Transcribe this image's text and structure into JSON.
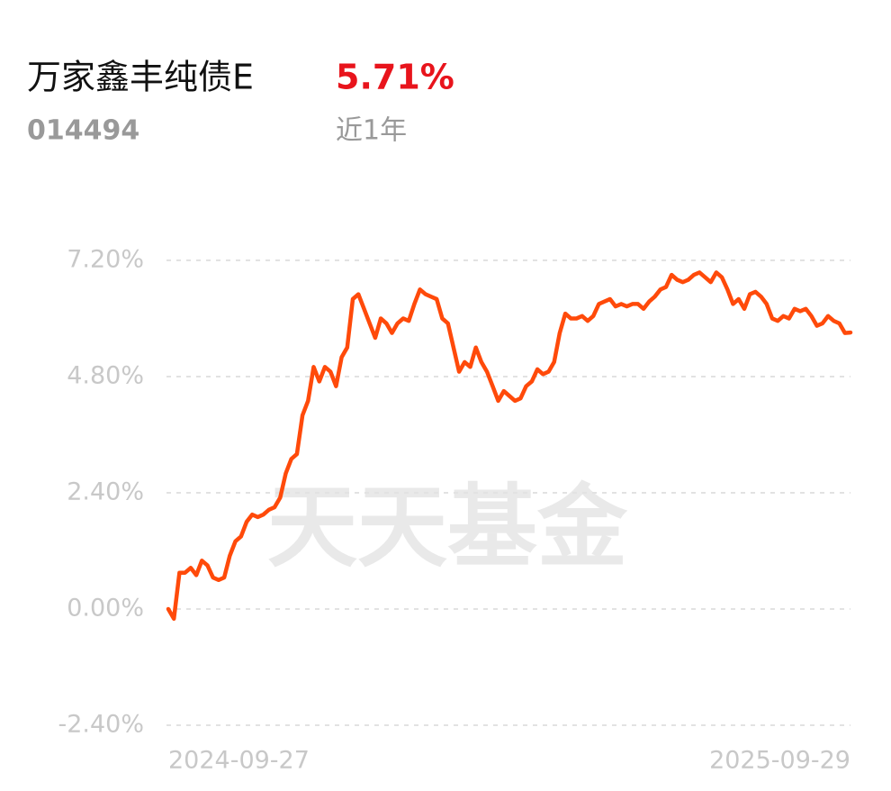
{
  "header": {
    "name": "万家鑫丰纯债E",
    "return": "5.71%",
    "code": "014494",
    "period": "近1年"
  },
  "watermark": "天天基金",
  "chart_data": {
    "type": "line",
    "categories": [
      "2024-09-27",
      null,
      null,
      null,
      null,
      null,
      null,
      null,
      null,
      null,
      null,
      null,
      null,
      null,
      null,
      null,
      null,
      null,
      null,
      null,
      null,
      null,
      null,
      null,
      null,
      null,
      null,
      null,
      null,
      null,
      null,
      null,
      null,
      null,
      null,
      null,
      null,
      null,
      null,
      null,
      null,
      null,
      null,
      null,
      null,
      null,
      null,
      null,
      null,
      null,
      null,
      null,
      null,
      null,
      null,
      null,
      null,
      null,
      null,
      null,
      null,
      null,
      null,
      null,
      null,
      null,
      null,
      null,
      null,
      null,
      null,
      null,
      null,
      null,
      null,
      null,
      null,
      null,
      null,
      null,
      null,
      null,
      null,
      null,
      null,
      null,
      null,
      null,
      null,
      null,
      null,
      null,
      null,
      null,
      null,
      null,
      null,
      null,
      null,
      null,
      null,
      null,
      null,
      null,
      null,
      null,
      null,
      null,
      null,
      null,
      null,
      null,
      null,
      null,
      null,
      null,
      null,
      null,
      null,
      null,
      null,
      null,
      "2025-09-29"
    ],
    "series": [
      {
        "color": "#ff4a0a",
        "values": [
          0,
          -0.2,
          0.75,
          0.75,
          0.85,
          0.7,
          1.0,
          0.9,
          0.65,
          0.6,
          0.65,
          1.1,
          1.4,
          1.5,
          1.8,
          1.95,
          1.9,
          1.95,
          2.05,
          2.1,
          2.3,
          2.8,
          3.1,
          3.2,
          4.0,
          4.3,
          5.0,
          4.7,
          5.0,
          4.9,
          4.6,
          5.2,
          5.4,
          6.4,
          6.5,
          6.2,
          5.9,
          5.6,
          6.0,
          5.9,
          5.7,
          5.9,
          6.0,
          5.95,
          6.3,
          6.6,
          6.5,
          6.45,
          6.4,
          6.0,
          5.9,
          5.4,
          4.9,
          5.1,
          5.0,
          5.4,
          5.1,
          4.9,
          4.6,
          4.3,
          4.5,
          4.4,
          4.3,
          4.35,
          4.6,
          4.7,
          4.95,
          4.85,
          4.9,
          5.1,
          5.7,
          6.1,
          6.0,
          6.0,
          6.05,
          5.95,
          6.05,
          6.3,
          6.35,
          6.4,
          6.25,
          6.3,
          6.25,
          6.3,
          6.3,
          6.2,
          6.35,
          6.45,
          6.6,
          6.65,
          6.9,
          6.8,
          6.75,
          6.8,
          6.9,
          6.95,
          6.85,
          6.75,
          6.95,
          6.85,
          6.6,
          6.3,
          6.4,
          6.2,
          6.5,
          6.55,
          6.45,
          6.3,
          6.0,
          5.95,
          6.05,
          6.0,
          6.2,
          6.15,
          6.2,
          6.05,
          5.85,
          5.9,
          6.05,
          5.95,
          5.9,
          5.7,
          5.71
        ]
      }
    ],
    "ylim": [
      -2.4,
      7.2
    ],
    "yticks": [
      {
        "value": -2.4,
        "label": "-2.40%"
      },
      {
        "value": 0,
        "label": "0.00%"
      },
      {
        "value": 2.4,
        "label": "2.40%"
      },
      {
        "value": 4.8,
        "label": "4.80%"
      },
      {
        "value": 7.2,
        "label": "7.20%"
      }
    ],
    "grid": true
  }
}
